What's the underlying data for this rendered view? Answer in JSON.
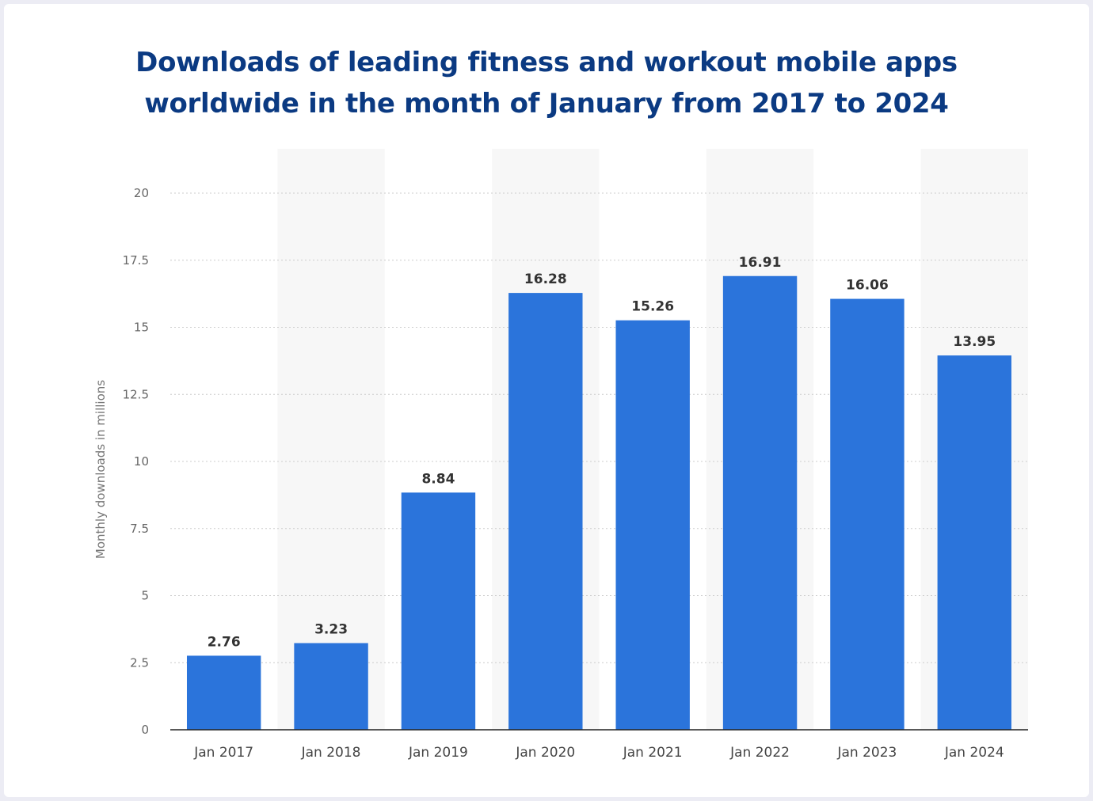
{
  "chart_data": {
    "type": "bar",
    "title_lines": [
      "Downloads of leading fitness and workout mobile apps",
      "worldwide in the month of January from 2017 to 2024"
    ],
    "xlabel": "",
    "ylabel": "Monthly downloads in millions",
    "categories": [
      "Jan 2017",
      "Jan 2018",
      "Jan 2019",
      "Jan 2020",
      "Jan 2021",
      "Jan 2022",
      "Jan 2023",
      "Jan 2024"
    ],
    "values": [
      2.76,
      3.23,
      8.84,
      16.28,
      15.26,
      16.91,
      16.06,
      13.95
    ],
    "value_labels": [
      "2.76",
      "3.23",
      "8.84",
      "16.28",
      "15.26",
      "16.91",
      "16.06",
      "13.95"
    ],
    "ylim": [
      0,
      20
    ],
    "yticks": [
      0,
      2.5,
      5,
      7.5,
      10,
      12.5,
      15,
      17.5,
      20
    ],
    "ytick_labels": [
      "0",
      "2.5",
      "5",
      "7.5",
      "10",
      "12.5",
      "15",
      "17.5",
      "20"
    ],
    "grid": true,
    "legend": "none",
    "colors": {
      "bar": "#2b74db",
      "title": "#0b3a82",
      "alt_band": "#f7f7f7",
      "grid": "#cccccc",
      "background": "#ececf4"
    }
  }
}
